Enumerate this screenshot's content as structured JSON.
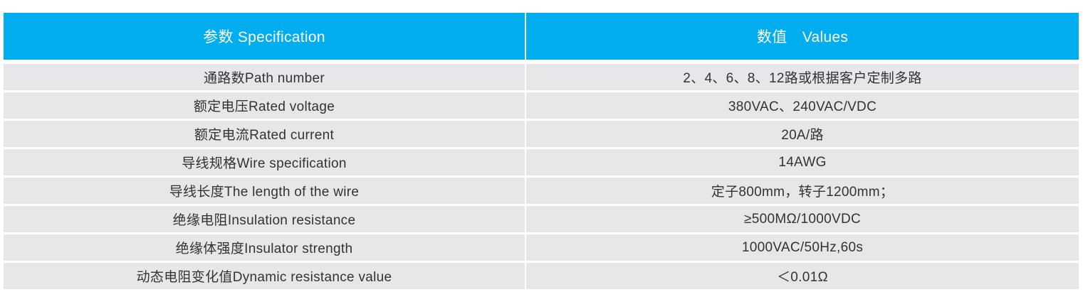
{
  "table": {
    "header": [
      "参数 Specification",
      "数值　Values"
    ],
    "rows": [
      [
        "通路数Path number",
        "2、4、6、8、12路或根据客户定制多路"
      ],
      [
        "额定电压Rated voltage",
        "380VAC、240VAC/VDC"
      ],
      [
        "额定电流Rated current",
        "20A/路"
      ],
      [
        "导线规格Wire specification",
        "14AWG"
      ],
      [
        "导线长度The length of the wire",
        "定子800mm，转子1200mm；"
      ],
      [
        "绝缘电阻Insulation resistance",
        "≥500MΩ/1000VDC"
      ],
      [
        "绝缘体强度Insulator strength",
        "1000VAC/50Hz,60s"
      ],
      [
        "动态电阻变化值Dynamic resistance value",
        "＜0.01Ω"
      ]
    ]
  }
}
